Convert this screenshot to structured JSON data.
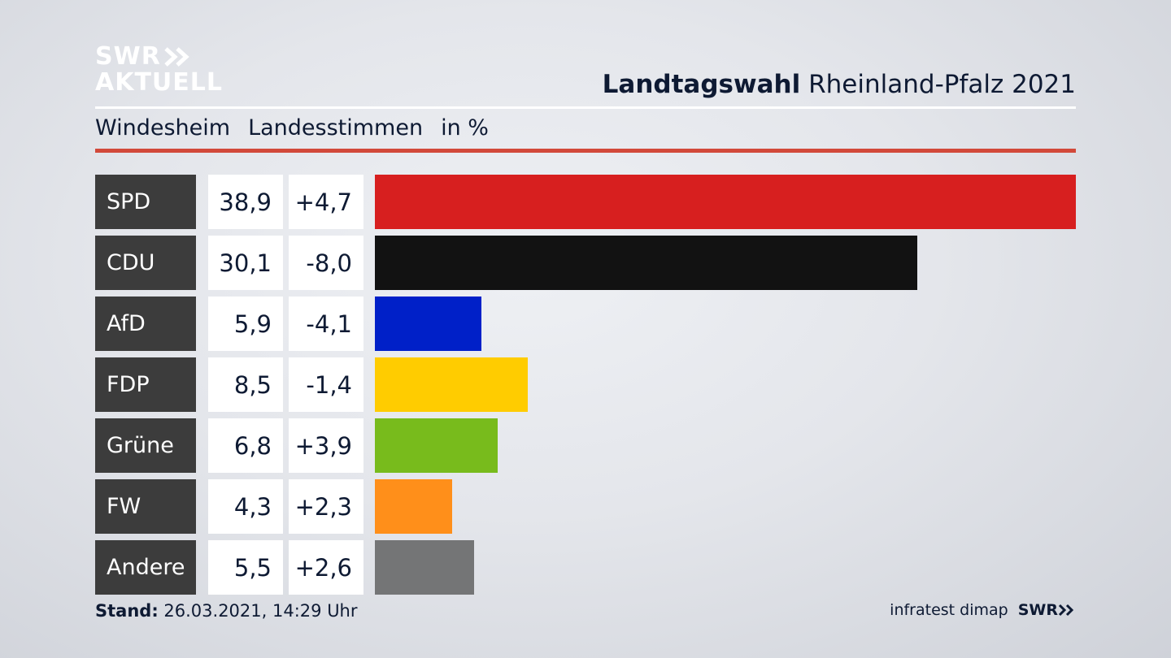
{
  "brand": {
    "line1": "SWR",
    "line2": "AKTUELL"
  },
  "header": {
    "title_bold": "Landtagswahl",
    "title_rest": "Rheinland-Pfalz 2021"
  },
  "subheader": {
    "location": "Windesheim",
    "category": "Landesstimmen",
    "unit": "in %"
  },
  "chart_data": {
    "type": "bar",
    "orientation": "horizontal",
    "title": "Landtagswahl Rheinland-Pfalz 2021",
    "subtitle": "Windesheim Landesstimmen in %",
    "categories": [
      "SPD",
      "CDU",
      "AfD",
      "FDP",
      "Grüne",
      "FW",
      "Andere"
    ],
    "values": [
      38.9,
      30.1,
      5.9,
      8.5,
      6.8,
      4.3,
      5.5
    ],
    "value_labels": [
      "38,9",
      "30,1",
      "5,9",
      "8,5",
      "6,8",
      "4,3",
      "5,5"
    ],
    "changes": [
      4.7,
      -8.0,
      -4.1,
      -1.4,
      3.9,
      2.3,
      2.6
    ],
    "change_labels": [
      "+4,7",
      "-8,0",
      "-4,1",
      "-1,4",
      "+3,9",
      "+2,3",
      "+2,6"
    ],
    "colors": [
      "#d71f1f",
      "#121212",
      "#0020c8",
      "#ffcc00",
      "#78bb1c",
      "#ff8f1a",
      "#747576"
    ],
    "xlim": [
      0,
      38.9
    ]
  },
  "footer": {
    "stand_label": "Stand:",
    "stand_value": "26.03.2021, 14:29 Uhr",
    "source": "infratest dimap",
    "source_brand": "SWR"
  }
}
